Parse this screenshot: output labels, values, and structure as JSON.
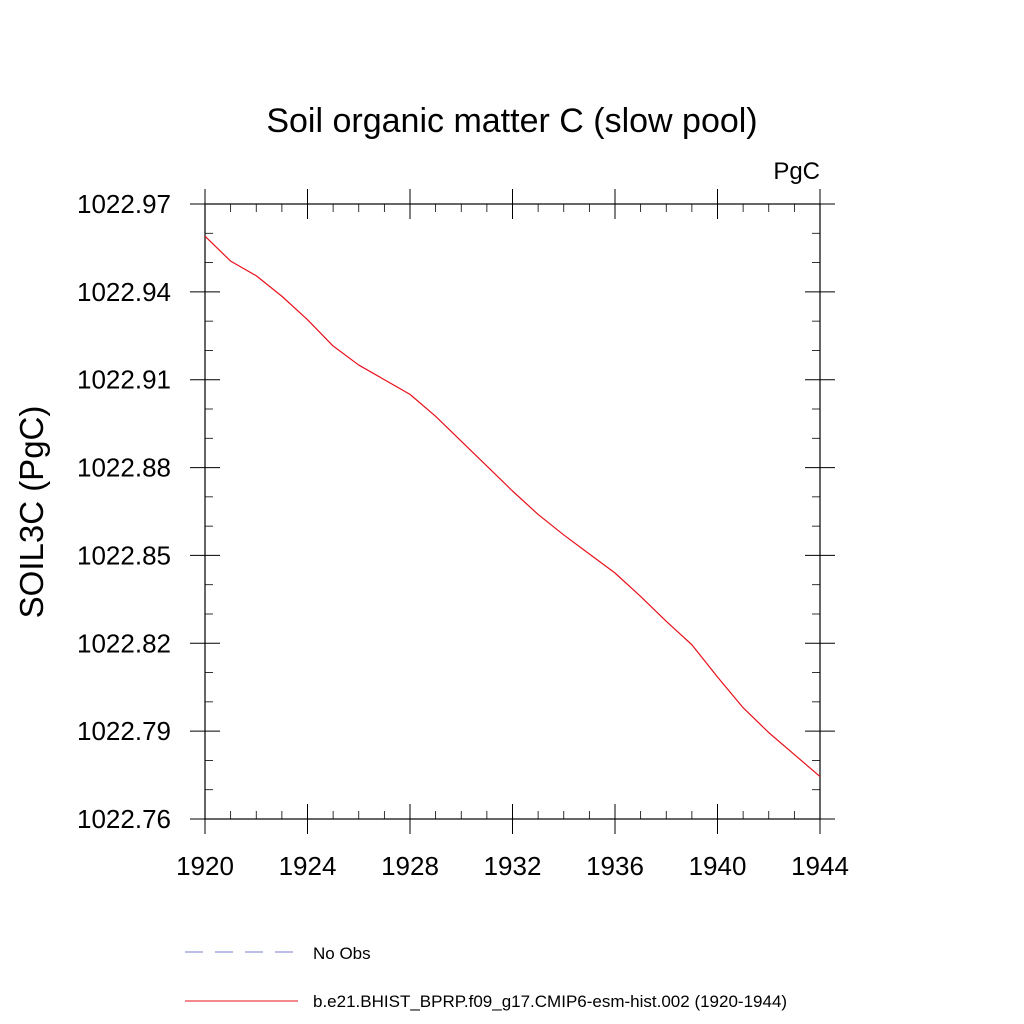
{
  "chart_data": {
    "type": "line",
    "title": "Soil organic matter C (slow pool)",
    "units_label": "PgC",
    "ylabel": "SOIL3C  (PgC)",
    "xlabel": "",
    "xlim": [
      1920,
      1944
    ],
    "ylim": [
      1022.76,
      1022.97
    ],
    "x_ticks": [
      1920,
      1924,
      1928,
      1932,
      1936,
      1940,
      1944
    ],
    "x_tick_labels": [
      "1920",
      "1924",
      "1928",
      "1932",
      "1936",
      "1940",
      "1944"
    ],
    "y_ticks": [
      1022.76,
      1022.79,
      1022.82,
      1022.85,
      1022.88,
      1022.91,
      1022.94,
      1022.97
    ],
    "y_tick_labels": [
      "1022.76",
      "1022.79",
      "1022.82",
      "1022.85",
      "1022.88",
      "1022.91",
      "1022.94",
      "1022.97"
    ],
    "grid": false,
    "legend_position": "bottom",
    "series": [
      {
        "name": "No Obs",
        "color": "#7b7bd6",
        "dash": "dashed",
        "x": [],
        "y": []
      },
      {
        "name": "b.e21.BHIST_BPRP.f09_g17.CMIP6-esm-hist.002 (1920-1944)",
        "color": "#e8101a",
        "dash": "solid",
        "x": [
          1920,
          1921,
          1922,
          1923,
          1924,
          1925,
          1926,
          1927,
          1928,
          1929,
          1930,
          1931,
          1932,
          1933,
          1934,
          1935,
          1936,
          1937,
          1938,
          1939,
          1940,
          1941,
          1942,
          1943,
          1944
        ],
        "y": [
          1022.959,
          1022.9505,
          1022.9455,
          1022.9385,
          1022.9305,
          1022.9215,
          1022.915,
          1022.91,
          1022.905,
          1022.8975,
          1022.889,
          1022.8805,
          1022.872,
          1022.864,
          1022.857,
          1022.8505,
          1022.844,
          1022.836,
          1022.8275,
          1022.8195,
          1022.8085,
          1022.798,
          1022.7895,
          1022.782,
          1022.7745
        ]
      }
    ]
  }
}
